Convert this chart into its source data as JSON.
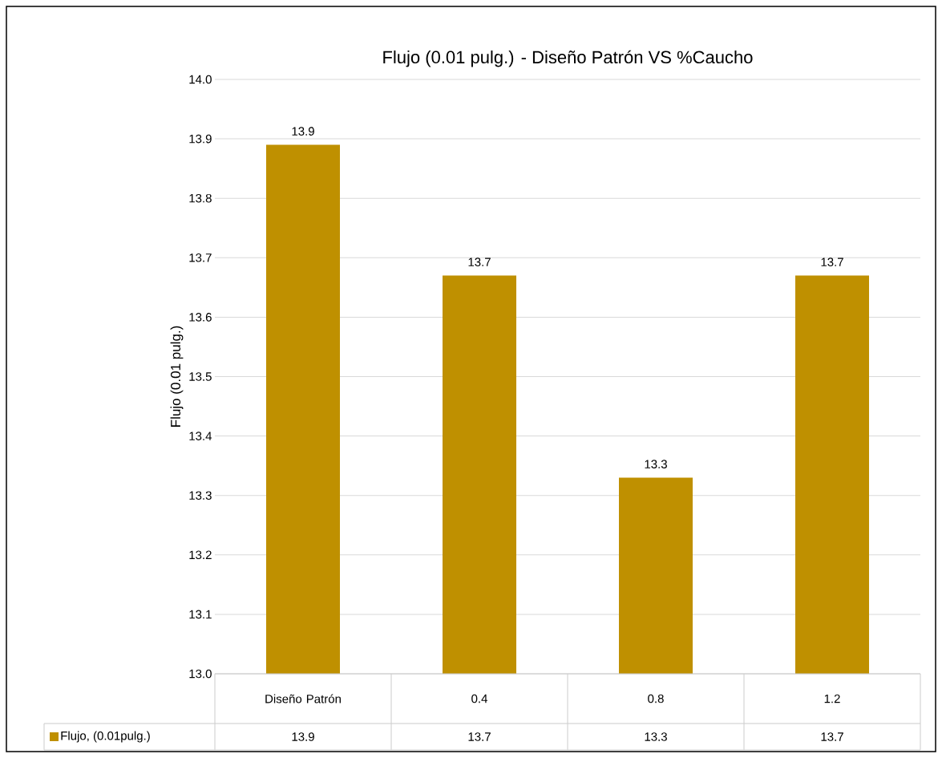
{
  "chart_data": {
    "type": "bar",
    "title": "Flujo (0.01 pulg.) - Diseño Patrón VS %Caucho",
    "ylabel": "Flujo (0.01 pulg.)",
    "categories": [
      "Diseño Patrón",
      "0.4",
      "0.8",
      "1.2"
    ],
    "series": [
      {
        "name": "Flujo, (0.01pulg.)",
        "color": "#bf9000",
        "values": [
          13.89,
          13.67,
          13.33,
          13.67
        ],
        "value_labels": [
          "13.9",
          "13.7",
          "13.3",
          "13.7"
        ]
      }
    ],
    "ylim": [
      13.0,
      14.0
    ],
    "yticks": [
      {
        "value": 13.0,
        "label": "13.0"
      },
      13.1,
      13.2,
      13.3,
      13.4,
      13.5,
      13.6,
      13.7,
      13.8,
      13.9,
      {
        "value": 14.0,
        "label": "14.0"
      }
    ],
    "grid": "y",
    "legend": "bottom"
  }
}
